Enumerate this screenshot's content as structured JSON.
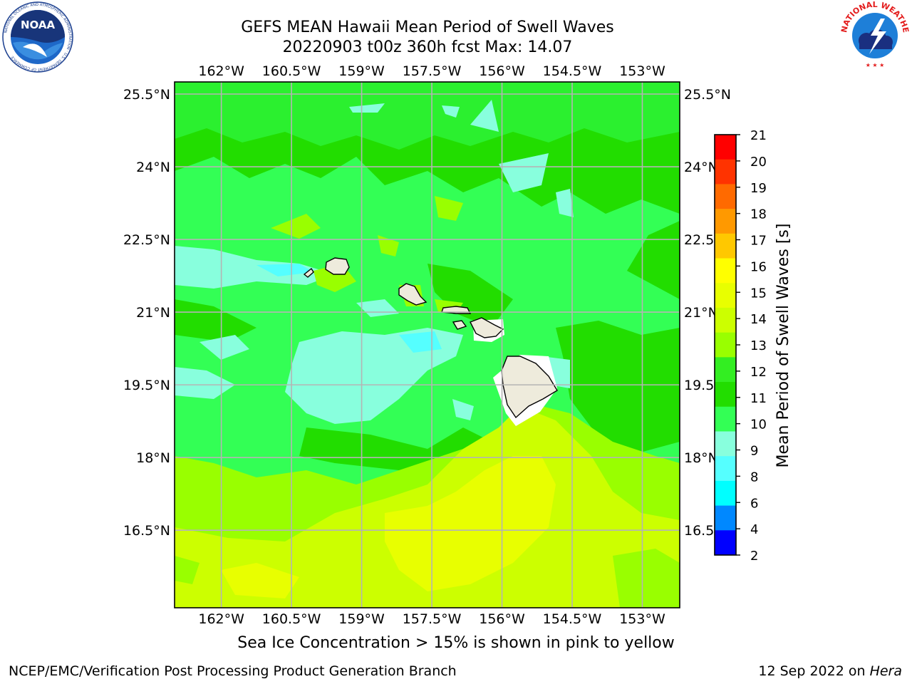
{
  "header": {
    "title": "GEFS MEAN Hawaii Mean Period of Swell Waves",
    "subtitle": "20220903 t00z 360h fcst   Max: 14.07"
  },
  "logos": {
    "left": {
      "icon": "noaa-logo-icon",
      "text": "NOAA",
      "ring_text": "NATIONAL OCEANIC AND ATMOSPHERIC ADMINISTRATION · U.S. DEPARTMENT OF COMMERCE"
    },
    "right": {
      "icon": "nws-logo-icon",
      "ring_text": "NATIONAL WEATHER SERVICE"
    }
  },
  "map": {
    "lon_labels": [
      "162°W",
      "160.5°W",
      "159°W",
      "157.5°W",
      "156°W",
      "154.5°W",
      "153°W"
    ],
    "lon_values": [
      -162,
      -160.5,
      -159,
      -157.5,
      -156,
      -154.5,
      -153
    ],
    "lat_labels_left": [
      "25.5°N",
      "24°N",
      "22.5°N",
      "21°N",
      "19.5°N",
      "18°N",
      "16.5°N"
    ],
    "lat_labels_right": [
      "25.5°N",
      "24°N",
      "22.5",
      "21°N",
      "19.5",
      "18°N",
      "16.5"
    ],
    "lat_values": [
      25.5,
      24,
      22.5,
      21,
      19.5,
      18,
      16.5
    ],
    "lon_range": [
      -163,
      -152.2
    ],
    "lat_range": [
      25.75,
      14.9
    ],
    "grid": true,
    "land_color": "#eeebdc"
  },
  "colorbar": {
    "label": "Mean Period of Swell Waves [s]",
    "ticks": [
      "21",
      "20",
      "19",
      "18",
      "17",
      "16",
      "15",
      "14",
      "13",
      "12",
      "11",
      "10",
      "9",
      "8",
      "6",
      "4",
      "2"
    ],
    "colors": [
      "#ff0000",
      "#ff3300",
      "#ff6a00",
      "#ff9900",
      "#ffc800",
      "#ffff00",
      "#e8ff00",
      "#ccff00",
      "#99ff00",
      "#33ee22",
      "#22dd00",
      "#33ff55",
      "#88ffdd",
      "#55ffff",
      "#00ffff",
      "#0088ff",
      "#0000ff"
    ]
  },
  "caption": "Sea Ice Concentration > 15% is shown in pink to yellow",
  "footer": {
    "left": "NCEP/EMC/Verification Post Processing Product Generation Branch",
    "right_date": "12 Sep 2022 on ",
    "right_host": "Hera"
  }
}
